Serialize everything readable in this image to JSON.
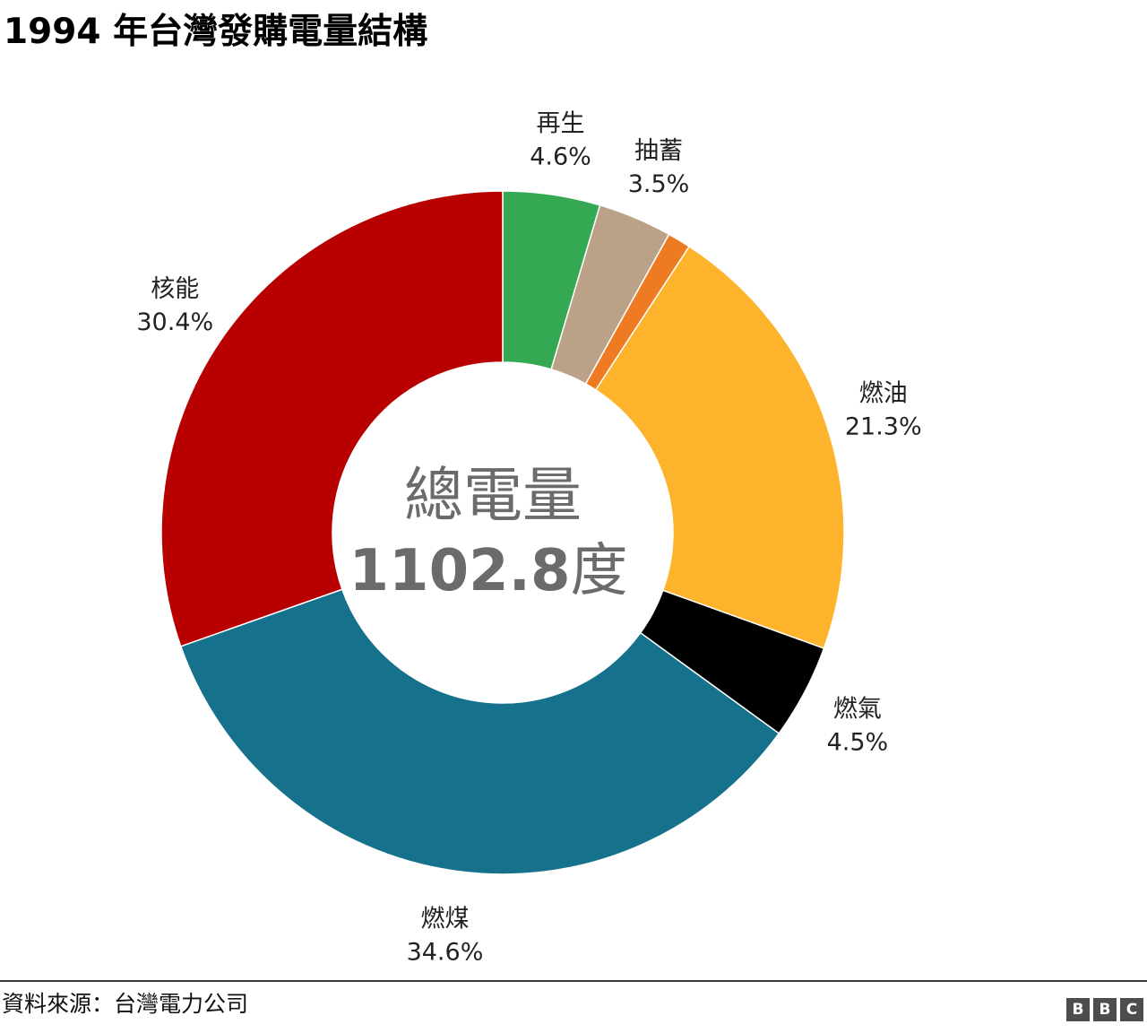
{
  "title": "1994 年台灣發購電量結構",
  "chart_data": {
    "type": "pie",
    "style": "donut",
    "title": "1994 年台灣發購電量結構",
    "center_caption": "總電量",
    "center_value": "1102.8",
    "center_unit": "度",
    "slices": [
      {
        "name": "再生",
        "label": "再生",
        "value": 4.6,
        "value_label": "4.6%",
        "color": "#34a853"
      },
      {
        "name": "抽蓄",
        "label": "抽蓄",
        "value": 3.5,
        "value_label": "3.5%",
        "color": "#baa188"
      },
      {
        "name": "",
        "label": "",
        "value": 1.1,
        "value_label": "",
        "color": "#ee7b21"
      },
      {
        "name": "燃油",
        "label": "燃油",
        "value": 21.3,
        "value_label": "21.3%",
        "color": "#fdb32b"
      },
      {
        "name": "燃氣",
        "label": "燃氣",
        "value": 4.5,
        "value_label": "4.5%",
        "color": "#000000"
      },
      {
        "name": "燃煤",
        "label": "燃煤",
        "value": 34.6,
        "value_label": "34.6%",
        "color": "#15718c"
      },
      {
        "name": "核能",
        "label": "核能",
        "value": 30.4,
        "value_label": "30.4%",
        "color": "#b80000"
      }
    ]
  },
  "footer": {
    "source": "資料來源：台灣電力公司",
    "logo": [
      "B",
      "B",
      "C"
    ]
  }
}
